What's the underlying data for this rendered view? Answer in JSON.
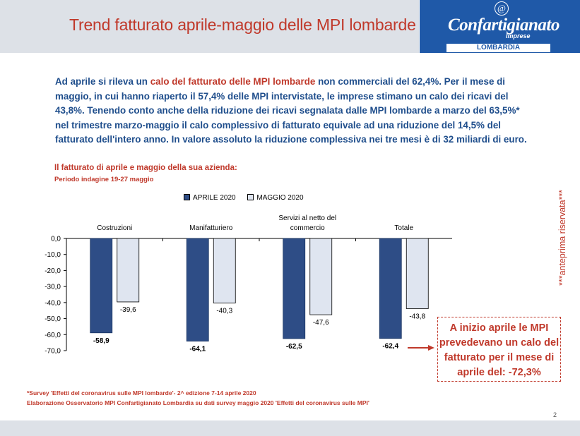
{
  "header": {
    "title": "Trend fatturato aprile-maggio delle MPI lombarde",
    "logo_word": "Confartigianato",
    "logo_sub": "Imprese",
    "logo_region": "LOMBARDIA",
    "logo_at": "@"
  },
  "intro": {
    "p1": "Ad aprile si rileva un ",
    "p1_highlight": "calo del fatturato delle MPI lombarde",
    "p2": " non commerciali del 62,4%. Per il mese di maggio, in cui hanno riaperto il 57,4% delle MPI intervistate, le imprese stimano un calo dei ricavi del 43,8%. Tenendo conto anche della riduzione dei ricavi segnalata dalle MPI lombarde a marzo del 63,5%* nel trimestre marzo-maggio il calo complessivo di fatturato equivale ad una riduzione del 14,5% del fatturato dell'intero anno. In valore assoluto la riduzione complessiva nei tre mesi è di 32 miliardi di euro."
  },
  "chart_heading": {
    "title": "Il fatturato di aprile e maggio della sua azienda:",
    "subtitle": "Periodo indagine 19-27 maggio"
  },
  "chart_data": {
    "type": "bar",
    "categories": [
      "Costruzioni",
      "Manifatturiero",
      "Servizi al netto del commercio",
      "Totale"
    ],
    "series": [
      {
        "name": "APRILE 2020",
        "values": [
          -58.9,
          -64.1,
          -62.5,
          -62.4
        ],
        "color": "#2e4d86"
      },
      {
        "name": "MAGGIO 2020",
        "values": [
          -39.6,
          -40.3,
          -47.6,
          -43.8
        ],
        "color": "#dfe5f0"
      }
    ],
    "ylim": [
      -70,
      0
    ],
    "yticks": [
      "0,0",
      "-10,0",
      "-20,0",
      "-30,0",
      "-40,0",
      "-50,0",
      "-60,0",
      "-70,0"
    ],
    "value_labels": [
      [
        "-58,9",
        "-64,1",
        "-62,5",
        "-62,4"
      ],
      [
        "-39,6",
        "-40,3",
        "-47,6",
        "-43,8"
      ]
    ],
    "category_labels": [
      [
        "Costruzioni"
      ],
      [
        "Manifatturiero"
      ],
      [
        "Servizi al netto del",
        "commercio"
      ],
      [
        "Totale"
      ]
    ],
    "legend_position": "top",
    "grid": false
  },
  "callout": {
    "line1": "A inizio aprile le MPI",
    "line2": "prevedevano un calo del",
    "line3": "fatturato per il mese di",
    "line4": "aprile del: -72,3%",
    "color": "#c0392b"
  },
  "side_note": "***anteprima riservata***",
  "notes": {
    "note1": "*Survey 'Effetti del coronavirus sulle MPI lombarde'- 2^ edizione 7-14 aprile 2020",
    "note2": "Elaborazione Osservatorio MPI Confartigianato Lombardia su dati survey maggio 2020  'Effetti del coronavirus sulle MPI'"
  },
  "page_number": "2",
  "colors": {
    "accent_red": "#c0392b",
    "text_blue": "#1f4e8c",
    "logo_blue": "#1f59a8"
  }
}
